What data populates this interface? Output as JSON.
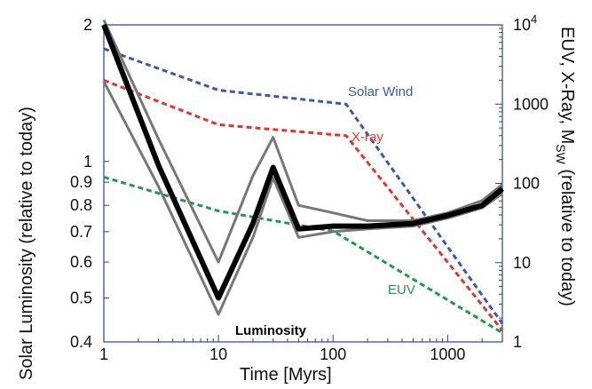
{
  "chart_data": {
    "type": "line",
    "xlabel": "Time [Myrs]",
    "ylabel_left": "Solar Luminosity (relative to today)",
    "ylabel_right_main": "EUV, X-Ray, M",
    "ylabel_right_sub": "SW",
    "ylabel_right_end": " (relative to today)",
    "x_scale": "log",
    "xlim": [
      1,
      3000
    ],
    "x_ticks": [
      "1",
      "10",
      "100",
      "1000"
    ],
    "left_scale": "log",
    "left_ylim": [
      0.4,
      2
    ],
    "left_ticks": [
      "0.4",
      "0.5",
      "0.6",
      "0.7",
      "0.8",
      "0.9",
      "1",
      "2"
    ],
    "right_scale": "log",
    "right_ylim": [
      1,
      10000
    ],
    "right_ticks": [
      "1",
      "10",
      "100",
      "1000"
    ],
    "right_top_tick_base": "10",
    "right_top_tick_exp": "4",
    "series_left": [
      {
        "name": "Luminosity",
        "color": "#000000",
        "x": [
          1,
          3,
          10,
          20,
          30,
          50,
          100,
          200,
          500,
          1000,
          2000,
          3000
        ],
        "y": [
          2.0,
          0.98,
          0.5,
          0.73,
          0.97,
          0.71,
          0.72,
          0.72,
          0.73,
          0.76,
          0.8,
          0.87
        ]
      },
      {
        "name": "",
        "color": "#777777",
        "x": [
          1,
          3,
          10,
          20,
          30,
          50,
          100,
          200,
          500,
          1000,
          2000,
          3000
        ],
        "y": [
          2.05,
          1.12,
          0.6,
          0.93,
          1.13,
          0.8,
          0.77,
          0.74,
          0.74,
          0.77,
          0.82,
          0.89
        ]
      },
      {
        "name": "",
        "color": "#777777",
        "x": [
          1,
          3,
          10,
          20,
          30,
          50,
          100,
          200,
          500,
          1000,
          2000,
          3000
        ],
        "y": [
          1.5,
          0.88,
          0.46,
          0.68,
          0.92,
          0.68,
          0.7,
          0.71,
          0.72,
          0.75,
          0.79,
          0.85
        ]
      }
    ],
    "series_right": [
      {
        "name": "Solar Wind",
        "color": "#3a5aa8",
        "x": [
          1,
          10,
          130,
          3000
        ],
        "y": [
          5000,
          1500,
          1000,
          1.7
        ]
      },
      {
        "name": "X-ray",
        "color": "#e3342f",
        "x": [
          1,
          10,
          130,
          3000
        ],
        "y": [
          2000,
          550,
          400,
          1.4
        ]
      },
      {
        "name": "EUV",
        "color": "#1e9b4b",
        "x": [
          1,
          10,
          100,
          3000
        ],
        "y": [
          120,
          45,
          25,
          1.3
        ]
      }
    ],
    "annotations": {
      "solar_wind": "Solar Wind",
      "x_ray": "X-ray",
      "euv": "EUV",
      "luminosity": "Luminosity"
    }
  }
}
